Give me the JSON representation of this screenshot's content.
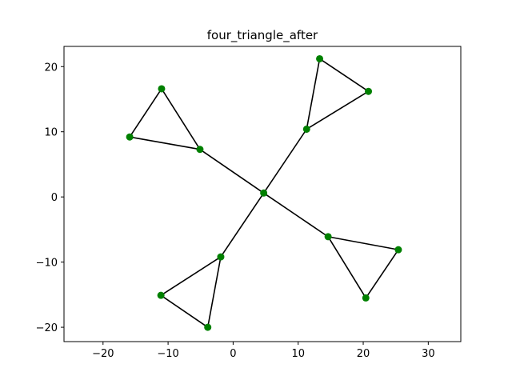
{
  "chart_data": {
    "type": "scatter",
    "title": "four_triangle_after",
    "xlabel": "",
    "ylabel": "",
    "xlim": [
      -26,
      35
    ],
    "ylim": [
      -22.2,
      23.1
    ],
    "xticks": [
      -20,
      -10,
      0,
      10,
      20,
      30
    ],
    "yticks": [
      -20,
      -10,
      0,
      10,
      20
    ],
    "grid": false,
    "colors": {
      "edge": "#000000",
      "node": "#008000"
    },
    "nodes": [
      {
        "id": "c",
        "x": 4.7,
        "y": 0.6
      },
      {
        "id": "a1",
        "x": 11.3,
        "y": 10.4
      },
      {
        "id": "a2",
        "x": 13.3,
        "y": 21.2
      },
      {
        "id": "a3",
        "x": 20.8,
        "y": 16.2
      },
      {
        "id": "b1",
        "x": -5.1,
        "y": 7.3
      },
      {
        "id": "b2",
        "x": -11.0,
        "y": 16.6
      },
      {
        "id": "b3",
        "x": -15.9,
        "y": 9.2
      },
      {
        "id": "d1",
        "x": -1.9,
        "y": -9.2
      },
      {
        "id": "d2",
        "x": -11.1,
        "y": -15.1
      },
      {
        "id": "d3",
        "x": -3.9,
        "y": -20.0
      },
      {
        "id": "e1",
        "x": 14.6,
        "y": -6.1
      },
      {
        "id": "e2",
        "x": 25.4,
        "y": -8.1
      },
      {
        "id": "e3",
        "x": 20.4,
        "y": -15.5
      }
    ],
    "edges": [
      [
        "c",
        "a1"
      ],
      [
        "a1",
        "a2"
      ],
      [
        "a2",
        "a3"
      ],
      [
        "a3",
        "a1"
      ],
      [
        "c",
        "b1"
      ],
      [
        "b1",
        "b2"
      ],
      [
        "b2",
        "b3"
      ],
      [
        "b3",
        "b1"
      ],
      [
        "c",
        "d1"
      ],
      [
        "d1",
        "d2"
      ],
      [
        "d2",
        "d3"
      ],
      [
        "d3",
        "d1"
      ],
      [
        "c",
        "e1"
      ],
      [
        "e1",
        "e2"
      ],
      [
        "e2",
        "e3"
      ],
      [
        "e3",
        "e1"
      ]
    ]
  }
}
